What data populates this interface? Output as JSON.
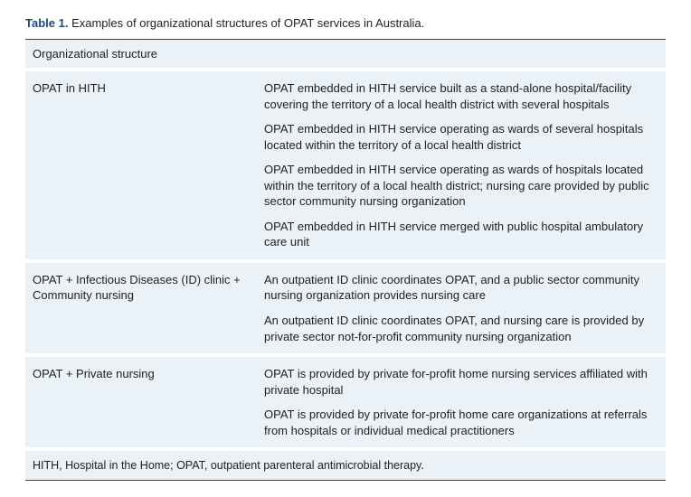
{
  "colors": {
    "accent": "#1a4a7a",
    "row_bg": "#eaf2f8",
    "gap_bg": "#ffffff",
    "rule": "#444444",
    "text": "#222222"
  },
  "title_prefix": "Table 1.",
  "title_rest": " Examples of organizational structures of OPAT services in Australia.",
  "header": "Organizational structure",
  "sections": [
    {
      "label": "OPAT in HITH",
      "items": [
        "OPAT embedded in HITH service built as a stand-alone hospital/facility covering the territory of a local health district with several hospitals",
        "OPAT embedded in HITH service operating as wards of several hospitals located within the territory of a local health district",
        "OPAT embedded in HITH service operating as wards of hospitals located within the territory of a local health district; nursing care provided by public sector community nursing organization",
        "OPAT embedded in HITH service merged with public hospital ambulatory care unit"
      ]
    },
    {
      "label": "OPAT + Infectious Diseases (ID) clinic + Community nursing",
      "items": [
        "An outpatient ID clinic coordinates OPAT, and a public sector community nursing organization provides nursing care",
        "An outpatient ID clinic coordinates OPAT, and nursing care is provided by private sector not-for-profit community nursing organization"
      ]
    },
    {
      "label": "OPAT + Private nursing",
      "items": [
        "OPAT is provided by private for-profit home nursing services affiliated with private hospital",
        "OPAT is provided by private for-profit home care organizations at referrals from hospitals or individual medical practitioners"
      ]
    }
  ],
  "footnote": "HITH, Hospital in the Home; OPAT, outpatient parenteral antimicrobial therapy."
}
